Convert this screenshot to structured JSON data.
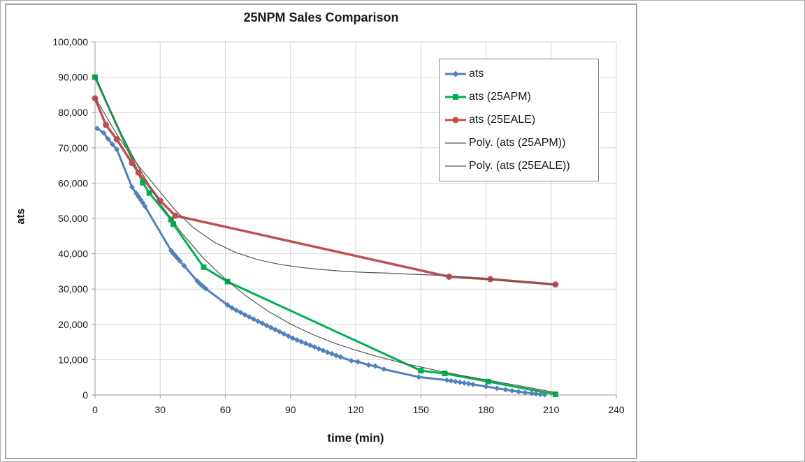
{
  "window": {
    "background": "#ffffff",
    "outer_border": "#ababab",
    "chart_border": "#a6a6a6"
  },
  "chart_data": {
    "type": "line",
    "title": "25NPM Sales Comparison",
    "xlabel": "time (min)",
    "ylabel": "ats",
    "xlim": [
      0,
      240
    ],
    "ylim": [
      0,
      100000
    ],
    "grid": true,
    "grid_color": "#d4d4d4",
    "axis_color": "#9a9a9a",
    "tick_label_color": "#1a1a1a",
    "legend_position": "upper right",
    "x_ticks": [
      {
        "v": 0,
        "label": "0"
      },
      {
        "v": 30,
        "label": "30"
      },
      {
        "v": 60,
        "label": "60"
      },
      {
        "v": 90,
        "label": "90"
      },
      {
        "v": 120,
        "label": "120"
      },
      {
        "v": 150,
        "label": "150"
      },
      {
        "v": 180,
        "label": "180"
      },
      {
        "v": 210,
        "label": "210"
      },
      {
        "v": 240,
        "label": "240"
      }
    ],
    "y_ticks": [
      {
        "v": 0,
        "label": "0"
      },
      {
        "v": 10000,
        "label": "10,000"
      },
      {
        "v": 20000,
        "label": "20,000"
      },
      {
        "v": 30000,
        "label": "30,000"
      },
      {
        "v": 40000,
        "label": "40,000"
      },
      {
        "v": 50000,
        "label": "50,000"
      },
      {
        "v": 60000,
        "label": "60,000"
      },
      {
        "v": 70000,
        "label": "70,000"
      },
      {
        "v": 80000,
        "label": "80,000"
      },
      {
        "v": 90000,
        "label": "90,000"
      },
      {
        "v": 100000,
        "label": "100,000"
      }
    ],
    "series": [
      {
        "name": "ats",
        "color": "#4f81bd",
        "marker": "diamond",
        "marker_size": 8,
        "line_width": 3,
        "points": [
          [
            1,
            75500
          ],
          [
            4,
            74200
          ],
          [
            6,
            72500
          ],
          [
            8,
            71000
          ],
          [
            10,
            69600
          ],
          [
            17,
            58900
          ],
          [
            19,
            57100
          ],
          [
            20,
            56200
          ],
          [
            21,
            55300
          ],
          [
            22,
            54400
          ],
          [
            23,
            53400
          ],
          [
            35,
            40900
          ],
          [
            36,
            40100
          ],
          [
            37,
            39400
          ],
          [
            38,
            38700
          ],
          [
            39,
            38000
          ],
          [
            41,
            36600
          ],
          [
            47,
            32300
          ],
          [
            48,
            31700
          ],
          [
            49,
            31100
          ],
          [
            50,
            30600
          ],
          [
            51,
            30100
          ],
          [
            61,
            25500
          ],
          [
            63,
            24700
          ],
          [
            65,
            24000
          ],
          [
            67,
            23400
          ],
          [
            69,
            22700
          ],
          [
            71,
            22100
          ],
          [
            73,
            21500
          ],
          [
            75,
            20900
          ],
          [
            77,
            20300
          ],
          [
            79,
            19700
          ],
          [
            81,
            19100
          ],
          [
            83,
            18500
          ],
          [
            85,
            17900
          ],
          [
            87,
            17300
          ],
          [
            89,
            16700
          ],
          [
            91,
            16100
          ],
          [
            93,
            15600
          ],
          [
            95,
            15100
          ],
          [
            97,
            14600
          ],
          [
            99,
            14100
          ],
          [
            101,
            13600
          ],
          [
            103,
            13100
          ],
          [
            105,
            12600
          ],
          [
            107,
            12100
          ],
          [
            109,
            11700
          ],
          [
            111,
            11200
          ],
          [
            113,
            10800
          ],
          [
            118,
            9700
          ],
          [
            121,
            9400
          ],
          [
            126,
            8500
          ],
          [
            129,
            8200
          ],
          [
            133,
            7300
          ],
          [
            149,
            5100
          ],
          [
            162,
            4200
          ],
          [
            164,
            4000
          ],
          [
            166,
            3800
          ],
          [
            168,
            3600
          ],
          [
            170,
            3400
          ],
          [
            172,
            3200
          ],
          [
            174,
            3000
          ],
          [
            180,
            2400
          ],
          [
            185,
            1900
          ],
          [
            189,
            1500
          ],
          [
            192,
            1200
          ],
          [
            195,
            950
          ],
          [
            198,
            700
          ],
          [
            201,
            500
          ],
          [
            203,
            350
          ],
          [
            205,
            200
          ],
          [
            207,
            100
          ]
        ]
      },
      {
        "name": "ats (25APM)",
        "color": "#00b050",
        "marker": "square",
        "marker_size": 8,
        "line_width": 3,
        "points": [
          [
            0,
            90000
          ],
          [
            22,
            60100
          ],
          [
            25,
            57200
          ],
          [
            35,
            49700
          ],
          [
            36,
            48400
          ],
          [
            50,
            36200
          ],
          [
            61,
            32100
          ],
          [
            150,
            6900
          ],
          [
            161,
            6100
          ],
          [
            181,
            3800
          ],
          [
            212,
            200
          ]
        ]
      },
      {
        "name": "ats (25EALE)",
        "color": "#c0504d",
        "marker": "circle",
        "marker_size": 9,
        "line_width": 3.5,
        "points": [
          [
            0,
            84000
          ],
          [
            5,
            76500
          ],
          [
            10,
            72400
          ],
          [
            17,
            65700
          ],
          [
            20,
            63000
          ],
          [
            30,
            55000
          ],
          [
            37,
            50800
          ],
          [
            163,
            33500
          ],
          [
            182,
            32800
          ],
          [
            212,
            31300
          ]
        ]
      },
      {
        "name": "Poly. (ats (25APM))",
        "color": "#555555",
        "marker": "none",
        "marker_size": 0,
        "line_width": 1.2,
        "points": [
          [
            0,
            90500
          ],
          [
            10,
            76500
          ],
          [
            20,
            64500
          ],
          [
            30,
            54200
          ],
          [
            40,
            45800
          ],
          [
            50,
            38700
          ],
          [
            60,
            32800
          ],
          [
            70,
            27800
          ],
          [
            80,
            23600
          ],
          [
            90,
            20100
          ],
          [
            100,
            17200
          ],
          [
            110,
            14700
          ],
          [
            120,
            12700
          ],
          [
            130,
            10900
          ],
          [
            140,
            9300
          ],
          [
            150,
            7900
          ],
          [
            160,
            6600
          ],
          [
            170,
            5400
          ],
          [
            180,
            4300
          ],
          [
            190,
            3200
          ],
          [
            200,
            2100
          ],
          [
            212,
            700
          ]
        ]
      },
      {
        "name": "Poly. (ats (25EALE))",
        "color": "#555555",
        "marker": "none",
        "marker_size": 0,
        "line_width": 1.2,
        "points": [
          [
            0,
            84300
          ],
          [
            10,
            73800
          ],
          [
            20,
            64900
          ],
          [
            30,
            57500
          ],
          [
            37,
            52300
          ],
          [
            45,
            47500
          ],
          [
            55,
            43200
          ],
          [
            65,
            40300
          ],
          [
            75,
            38300
          ],
          [
            85,
            37000
          ],
          [
            95,
            36100
          ],
          [
            105,
            35500
          ],
          [
            115,
            35000
          ],
          [
            125,
            34700
          ],
          [
            135,
            34500
          ],
          [
            145,
            34200
          ],
          [
            155,
            34000
          ],
          [
            163,
            33700
          ],
          [
            175,
            33100
          ],
          [
            190,
            32300
          ],
          [
            200,
            31800
          ],
          [
            212,
            31200
          ]
        ]
      }
    ]
  }
}
